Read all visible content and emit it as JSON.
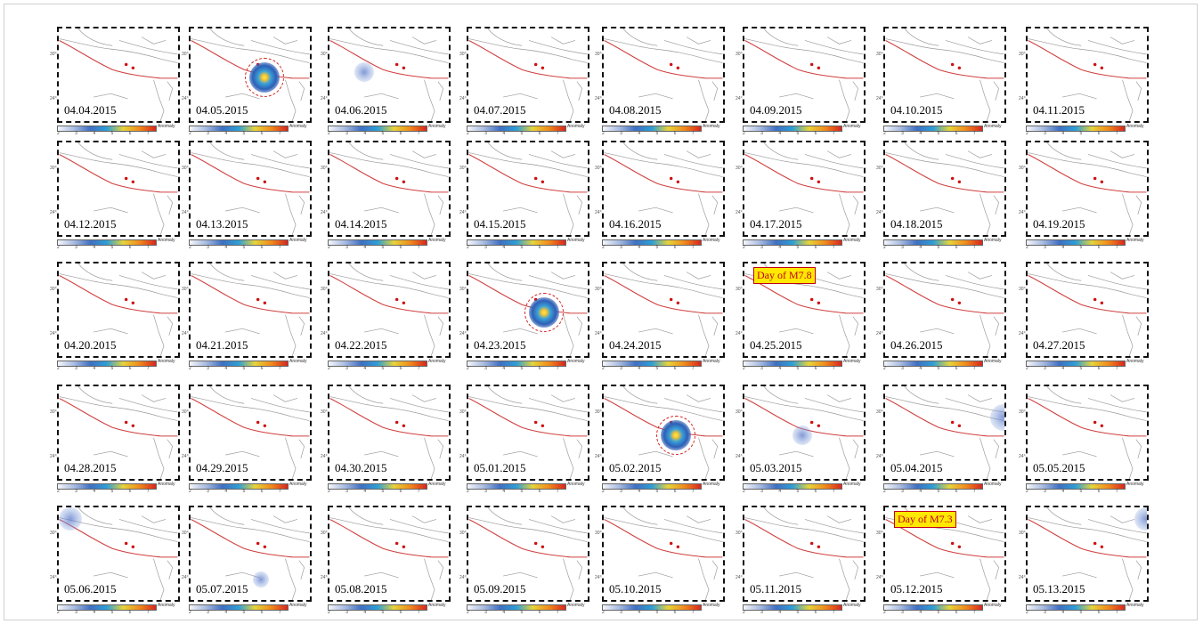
{
  "colorbar": {
    "label": "Anomaly",
    "ticks": "2 3 4 5 6 7"
  },
  "lat_labels": [
    "30°N",
    "24°N"
  ],
  "panels": [
    {
      "date": "04.04.2015"
    },
    {
      "date": "04.05.2015",
      "anomaly": "strong"
    },
    {
      "date": "04.06.2015",
      "anomaly": "weak"
    },
    {
      "date": "04.07.2015"
    },
    {
      "date": "04.08.2015"
    },
    {
      "date": "04.09.2015"
    },
    {
      "date": "04.10.2015"
    },
    {
      "date": "04.11.2015"
    },
    {
      "date": "04.12.2015"
    },
    {
      "date": "04.13.2015"
    },
    {
      "date": "04.14.2015"
    },
    {
      "date": "04.15.2015"
    },
    {
      "date": "04.16.2015"
    },
    {
      "date": "04.17.2015"
    },
    {
      "date": "04.18.2015"
    },
    {
      "date": "04.19.2015"
    },
    {
      "date": "04.20.2015"
    },
    {
      "date": "04.21.2015"
    },
    {
      "date": "04.22.2015"
    },
    {
      "date": "04.23.2015",
      "anomaly": "strong"
    },
    {
      "date": "04.24.2015"
    },
    {
      "date": "04.25.2015",
      "note": "Day of M7.8"
    },
    {
      "date": "04.26.2015"
    },
    {
      "date": "04.27.2015"
    },
    {
      "date": "04.28.2015"
    },
    {
      "date": "04.29.2015"
    },
    {
      "date": "04.30.2015"
    },
    {
      "date": "05.01.2015"
    },
    {
      "date": "05.02.2015",
      "anomaly": "strong"
    },
    {
      "date": "05.03.2015",
      "anomaly": "weak"
    },
    {
      "date": "05.04.2015",
      "anomaly": "weak"
    },
    {
      "date": "05.05.2015"
    },
    {
      "date": "05.06.2015",
      "anomaly": "weak"
    },
    {
      "date": "05.07.2015",
      "anomaly": "weak"
    },
    {
      "date": "05.08.2015"
    },
    {
      "date": "05.09.2015"
    },
    {
      "date": "05.10.2015"
    },
    {
      "date": "05.11.2015"
    },
    {
      "date": "05.12.2015",
      "note": "Day of M7.3"
    },
    {
      "date": "05.13.2015",
      "anomaly": "weak"
    }
  ]
}
